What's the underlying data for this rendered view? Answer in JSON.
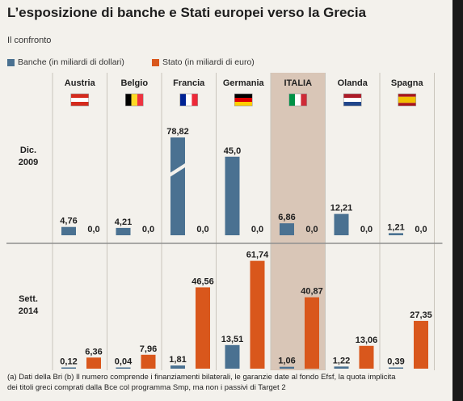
{
  "chart_data": {
    "type": "bar",
    "title": "L’esposizione di banche e Stati europei verso la Grecia",
    "subtitle": "Il confronto",
    "categories": [
      "Austria",
      "Belgio",
      "Francia",
      "Germania",
      "ITALIA",
      "Olanda",
      "Spagna"
    ],
    "flags": [
      [
        "#d52b1e",
        "#ffffff",
        "#d52b1e"
      ],
      [
        "#000000",
        "#fdda24",
        "#ef3340"
      ],
      [
        "#002395",
        "#ffffff",
        "#ed2939"
      ],
      [
        "#000000",
        "#dd0000",
        "#ffce00"
      ],
      [
        "#009246",
        "#ffffff",
        "#ce2b37"
      ],
      [
        "#ae1c28",
        "#ffffff",
        "#21468b"
      ],
      [
        "#aa151b",
        "#f1bf00",
        "#aa151b"
      ]
    ],
    "highlight_category": "ITALIA",
    "series": [
      {
        "name": "Banche (in miliardi di dollari)",
        "color": "#4a7191"
      },
      {
        "name": "Stato (in miliardi di euro)",
        "color": "#d9571c"
      }
    ],
    "periods": [
      {
        "label": [
          "Dic.",
          "2009"
        ],
        "banche": [
          4.76,
          4.21,
          78.82,
          45.0,
          6.86,
          12.21,
          1.21
        ],
        "stato": [
          0.0,
          0.0,
          0.0,
          0.0,
          0.0,
          0.0,
          0.0
        ],
        "banche_labels": [
          "4,76",
          "4,21",
          "78,82",
          "45,0",
          "6,86",
          "12,21",
          "1,21"
        ],
        "stato_labels": [
          "0,0",
          "0,0",
          "0,0",
          "0,0",
          "0,0",
          "0,0",
          "0,0"
        ],
        "broken_bars": [
          "Francia"
        ]
      },
      {
        "label": [
          "Sett.",
          "2014"
        ],
        "banche": [
          0.12,
          0.04,
          1.81,
          13.51,
          1.06,
          1.22,
          0.39
        ],
        "stato": [
          6.36,
          7.96,
          46.56,
          61.74,
          40.87,
          13.06,
          27.35
        ],
        "banche_labels": [
          "0,12",
          "0,04",
          "1,81",
          "13,51",
          "1,06",
          "1,22",
          "0,39"
        ],
        "stato_labels": [
          "6,36",
          "7,96",
          "46,56",
          "61,74",
          "40,87",
          "13,06",
          "27,35"
        ],
        "broken_bars": []
      }
    ],
    "footnote": [
      "(a) Dati della Bri (b) Il numero comprende i finanziamenti bilaterali, le garanzie date al fondo Efsf, la quota implicita",
      "dei titoli greci comprati dalla Bce col programma Smp, ma non i passivi di Target 2"
    ]
  }
}
